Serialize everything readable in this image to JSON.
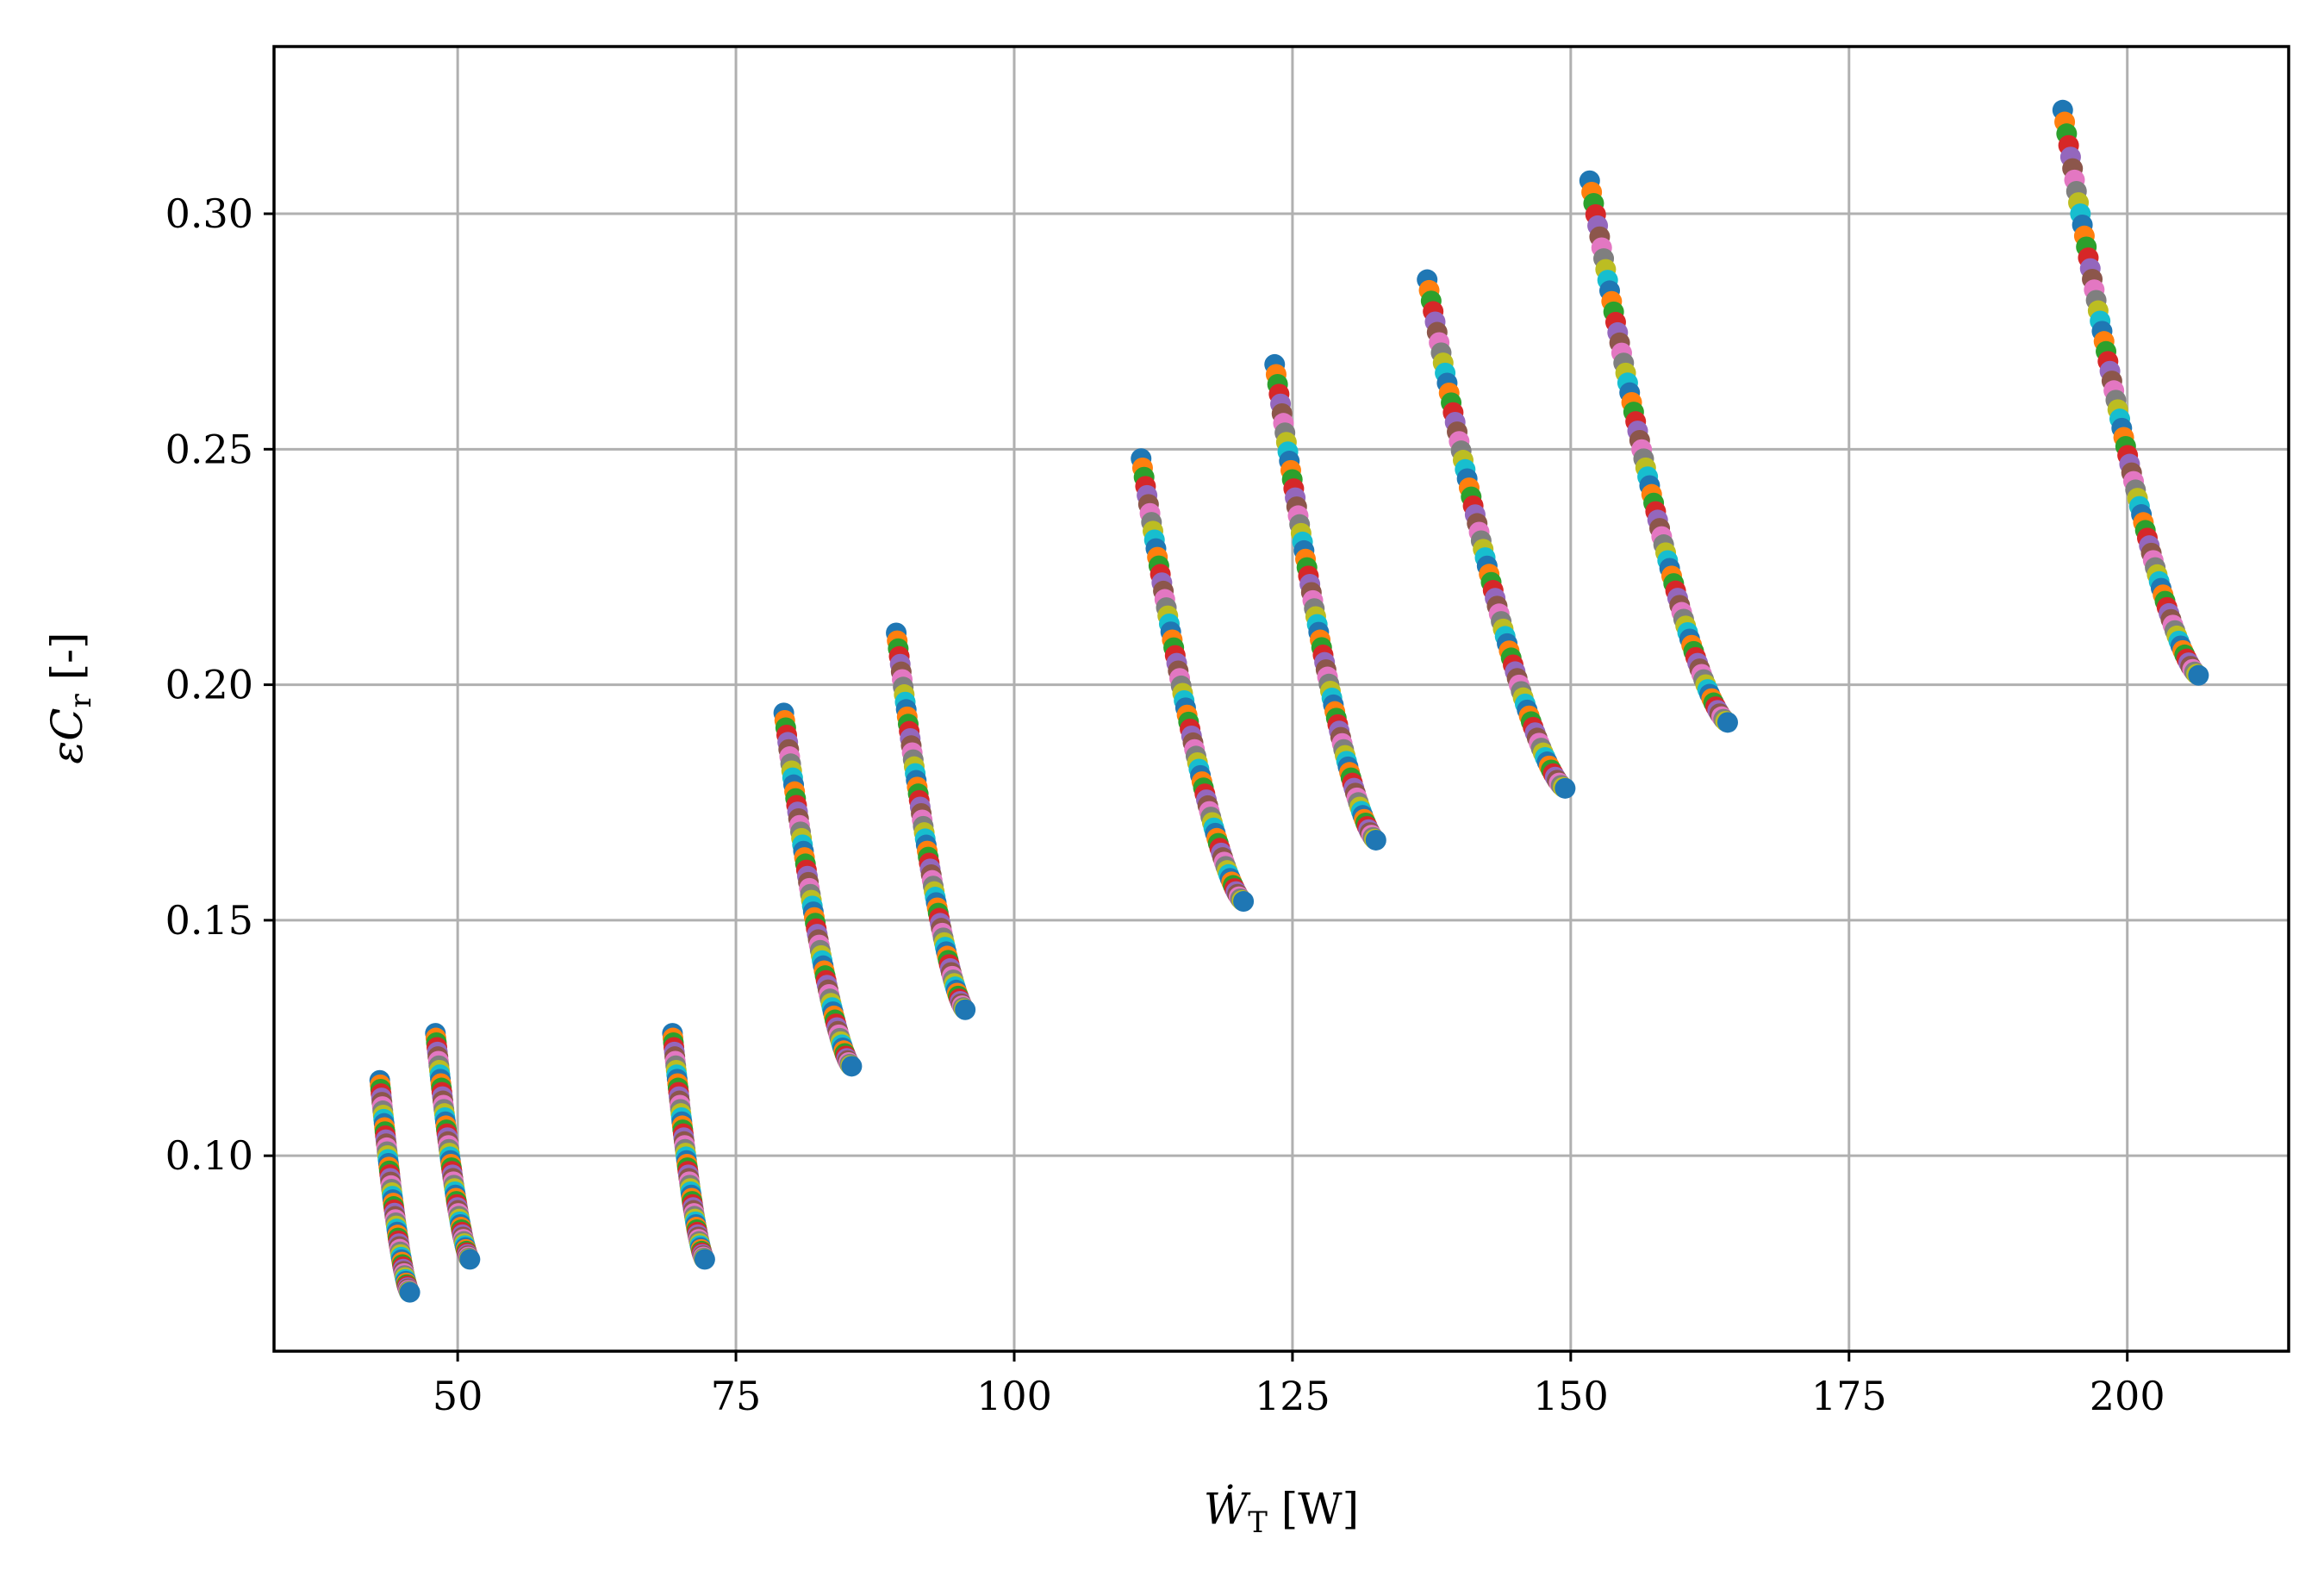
{
  "chart_data": {
    "type": "scatter",
    "title": "",
    "xlabel": "Ẇ_T [W]",
    "ylabel": "εC_r [-]",
    "xlim": [
      33.5,
      214.5
    ],
    "ylim": [
      0.0585,
      0.3355
    ],
    "xticks": [
      "50",
      "75",
      "100",
      "125",
      "150",
      "175",
      "200"
    ],
    "yticks": [
      "0.10",
      "0.15",
      "0.20",
      "0.25",
      "0.30"
    ],
    "grid": true,
    "legend": "none",
    "marker": "circle",
    "colors": [
      "#1f77b4",
      "#ff7f0e",
      "#2ca02c",
      "#d62728",
      "#9467bd",
      "#8c564b",
      "#e377c2",
      "#7f7f7f",
      "#bcbd22",
      "#17becf"
    ],
    "curves": [
      {
        "x_start": 43.0,
        "y_start": 0.116,
        "x_end": 45.7,
        "y_end": 0.071
      },
      {
        "x_start": 48.0,
        "y_start": 0.126,
        "x_end": 51.1,
        "y_end": 0.078
      },
      {
        "x_start": 69.3,
        "y_start": 0.126,
        "x_end": 72.2,
        "y_end": 0.078
      },
      {
        "x_start": 79.3,
        "y_start": 0.194,
        "x_end": 85.4,
        "y_end": 0.119
      },
      {
        "x_start": 89.4,
        "y_start": 0.211,
        "x_end": 95.6,
        "y_end": 0.131
      },
      {
        "x_start": 111.4,
        "y_start": 0.248,
        "x_end": 120.6,
        "y_end": 0.154
      },
      {
        "x_start": 123.4,
        "y_start": 0.268,
        "x_end": 132.5,
        "y_end": 0.167
      },
      {
        "x_start": 137.1,
        "y_start": 0.286,
        "x_end": 149.5,
        "y_end": 0.178
      },
      {
        "x_start": 151.7,
        "y_start": 0.307,
        "x_end": 164.1,
        "y_end": 0.192
      },
      {
        "x_start": 194.2,
        "y_start": 0.322,
        "x_end": 206.4,
        "y_end": 0.202
      }
    ]
  }
}
